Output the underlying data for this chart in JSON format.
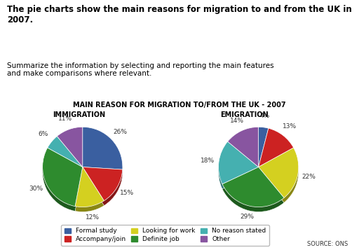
{
  "title": "MAIN REASON FOR MIGRATION TO/FROM THE UK - 2007",
  "immigration_label": "IMMIGRATION",
  "emigration_label": "EMIGRATION",
  "immigration_values": [
    26,
    15,
    12,
    30,
    6,
    11
  ],
  "emigration_values": [
    4,
    13,
    22,
    29,
    18,
    14
  ],
  "categories": [
    "Formal study",
    "Accompany/join",
    "Looking for work",
    "Definite job",
    "No reason stated",
    "Other"
  ],
  "colors": [
    "#3a5fa0",
    "#cc2222",
    "#d4d020",
    "#2e8b2e",
    "#45b0b0",
    "#8855a0"
  ],
  "immigration_pct": [
    "26%",
    "15%",
    "12%",
    "30%",
    "6%",
    "11%"
  ],
  "emigration_pct": [
    "4%",
    "13%",
    "22%",
    "29%",
    "18%",
    "14%"
  ],
  "header_bold": "The pie charts show the main reasons for migration to and from the UK in 2007.",
  "subtext": "Summarize the information by selecting and reporting the main features\nand make comparisons where relevant.",
  "source": "SOURCE: ONS",
  "bg_top": "#ffffff",
  "bg_chart": "#d8d4cc"
}
